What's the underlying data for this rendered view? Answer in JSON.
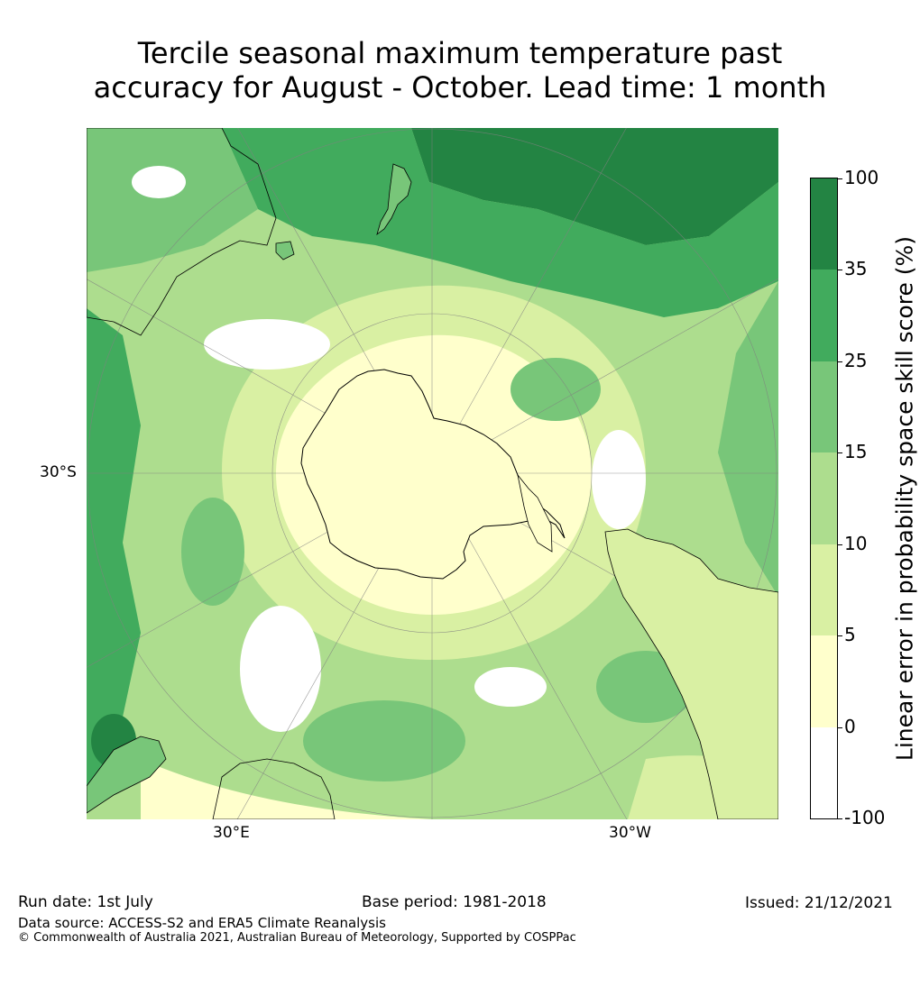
{
  "title_line1": "Tercile seasonal maximum temperature past",
  "title_line2": "accuracy for August - October. Lead time: 1 month",
  "map": {
    "projection": "south polar stereographic",
    "lat_label": "30°S",
    "lon_labels": [
      "30°E",
      "30°W"
    ],
    "colors": {
      "c_neg100_0": "#ffffff",
      "c_0_5": "#ffffcc",
      "c_5_10": "#d9f0a3",
      "c_10_15": "#addd8e",
      "c_15_25": "#78c679",
      "c_25_35": "#41ab5d",
      "c_35_100": "#238443"
    },
    "landmass_outline_color": "#000000",
    "grid_color": "#808080"
  },
  "colorbar": {
    "label": "Linear error in probability space skill score (%)",
    "ticks": [
      "100",
      "35",
      "25",
      "15",
      "10",
      "5",
      "0",
      "-100"
    ],
    "bins": [
      {
        "from": "-100",
        "to": "0",
        "color": "#ffffff"
      },
      {
        "from": "0",
        "to": "5",
        "color": "#ffffcc"
      },
      {
        "from": "5",
        "to": "10",
        "color": "#d9f0a3"
      },
      {
        "from": "10",
        "to": "15",
        "color": "#addd8e"
      },
      {
        "from": "15",
        "to": "25",
        "color": "#78c679"
      },
      {
        "from": "25",
        "to": "35",
        "color": "#41ab5d"
      },
      {
        "from": "35",
        "to": "100",
        "color": "#238443"
      }
    ]
  },
  "footer": {
    "run_date": "Run date: 1st July",
    "base_period": "Base period: 1981-2018",
    "issued": "Issued: 21/12/2021",
    "data_source": "Data source: ACCESS-S2 and ERA5 Climate Reanalysis",
    "copyright": "© Commonwealth of Australia 2021, Australian Bureau of Meteorology, Supported by COSPPac"
  }
}
